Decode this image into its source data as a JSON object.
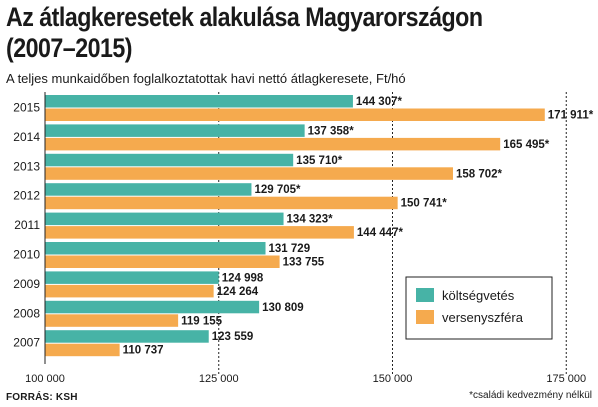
{
  "header": {
    "title_line1": "Az átlagkeresetek alakulása Magyarországon",
    "title_line2": "(2007–2015)",
    "subtitle": "A teljes munkaidőben foglalkoztatottak havi nettó átlagkeresete, Ft/hó"
  },
  "footer": {
    "source": "FORRÁS: KSH",
    "note": "*családi kedvezmény nélkül"
  },
  "colors": {
    "koltsegvetes": "#47b3a6",
    "versenyszfera": "#f5aa4e",
    "text": "#1a1a1a"
  },
  "chart_data": {
    "type": "bar",
    "orientation": "horizontal",
    "categories": [
      "2015",
      "2014",
      "2013",
      "2012",
      "2011",
      "2010",
      "2009",
      "2008",
      "2007"
    ],
    "series": [
      {
        "name": "költségvetés",
        "values": [
          144307,
          137358,
          135710,
          129705,
          134323,
          131729,
          124998,
          130809,
          123559
        ],
        "labels": [
          "144 307*",
          "137 358*",
          "135 710*",
          "129 705*",
          "134 323*",
          "131 729",
          "124 998",
          "130 809",
          "123 559"
        ]
      },
      {
        "name": "versenyszféra",
        "values": [
          171911,
          165495,
          158702,
          150741,
          144447,
          133755,
          124264,
          119155,
          110737
        ],
        "labels": [
          "171 911*",
          "165 495*",
          "158 702*",
          "150 741*",
          "144 447*",
          "133 755",
          "124 264",
          "119 155",
          "110 737"
        ]
      }
    ],
    "xlim": [
      100000,
      180000
    ],
    "xticks": [
      100000,
      125000,
      150000,
      175000
    ],
    "xtick_labels": [
      "100 000",
      "125 000",
      "150 000",
      "175 000"
    ],
    "grid": "dashed vertical lines at 125 000, 150 000, 175 000",
    "legend_position": "lower-right"
  }
}
